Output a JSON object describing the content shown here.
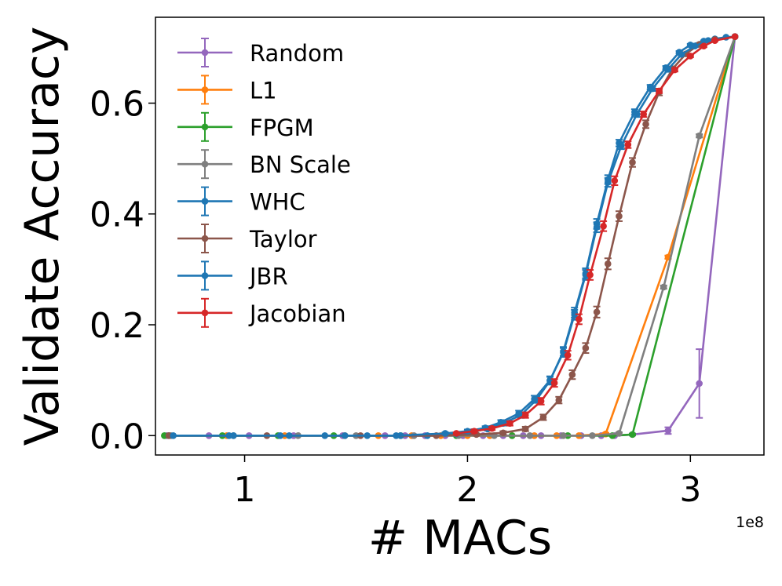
{
  "chart_data": {
    "type": "line",
    "title": "",
    "xlabel": "# MACs",
    "ylabel": "Validate Accuracy",
    "x_scale_label": "1e8",
    "xlim": [
      0.6,
      3.33
    ],
    "ylim": [
      -0.035,
      0.755
    ],
    "x_ticks": [
      1,
      2,
      3
    ],
    "x_tick_labels": [
      "1",
      "2",
      "3"
    ],
    "y_ticks": [
      0.0,
      0.2,
      0.4,
      0.6
    ],
    "y_tick_labels": [
      "0.0",
      "0.2",
      "0.4",
      "0.6"
    ],
    "grid": false,
    "legend_position": "upper-left",
    "series": [
      {
        "name": "Random",
        "color": "#9467bd",
        "x": [
          0.65,
          0.84,
          1.02,
          1.22,
          1.44,
          1.63,
          1.72,
          1.81,
          1.9,
          1.98,
          2.07,
          2.16,
          2.25,
          2.33,
          2.42,
          2.51,
          2.6,
          2.66,
          2.74,
          2.9,
          3.04,
          3.2
        ],
        "y": [
          0.0,
          0.0,
          0.0,
          0.0,
          0.0,
          0.0,
          0.0,
          0.0,
          0.0,
          0.0,
          0.0,
          0.0,
          0.0,
          0.0,
          0.0,
          0.0,
          0.0,
          0.0,
          0.002,
          0.009,
          0.094,
          0.72
        ],
        "err": [
          0,
          0,
          0,
          0,
          0,
          0,
          0,
          0,
          0,
          0,
          0,
          0,
          0,
          0,
          0,
          0,
          0,
          0,
          0.002,
          0.006,
          0.062,
          0
        ]
      },
      {
        "name": "L1",
        "color": "#ff7f0e",
        "x": [
          0.66,
          0.92,
          1.18,
          1.45,
          1.6,
          1.75,
          1.88,
          2.0,
          2.1,
          2.2,
          2.3,
          2.4,
          2.5,
          2.62,
          2.9,
          3.2
        ],
        "y": [
          0.0,
          0.0,
          0.0,
          0.0,
          0.0,
          0.0,
          0.0,
          0.0,
          0.0,
          0.0,
          0.0,
          0.0,
          0.0,
          0.003,
          0.322,
          0.72
        ],
        "err": [
          0,
          0,
          0,
          0,
          0,
          0,
          0,
          0,
          0,
          0,
          0,
          0,
          0,
          0.002,
          0.003,
          0
        ]
      },
      {
        "name": "FPGM",
        "color": "#2ca02c",
        "x": [
          0.64,
          0.9,
          1.15,
          1.4,
          1.7,
          1.95,
          2.2,
          2.45,
          2.65,
          2.74,
          3.2
        ],
        "y": [
          0.0,
          0.0,
          0.0,
          0.0,
          0.0,
          0.0,
          0.0,
          0.0,
          0.0,
          0.002,
          0.72
        ],
        "err": [
          0,
          0,
          0,
          0,
          0,
          0,
          0,
          0,
          0,
          0.001,
          0
        ]
      },
      {
        "name": "BN Scale",
        "color": "#7f7f7f",
        "x": [
          0.67,
          0.95,
          1.24,
          1.5,
          1.76,
          1.96,
          2.12,
          2.28,
          2.43,
          2.56,
          2.68,
          2.88,
          3.04,
          3.2
        ],
        "y": [
          0.0,
          0.0,
          0.0,
          0.0,
          0.0,
          0.0,
          0.0,
          0.0,
          0.0,
          0.0,
          0.004,
          0.268,
          0.541,
          0.72
        ],
        "err": [
          0,
          0,
          0,
          0,
          0,
          0,
          0,
          0,
          0,
          0,
          0.002,
          0.003,
          0.003,
          0
        ]
      },
      {
        "name": "WHC",
        "color": "#1f77b4",
        "x": [
          0.66,
          0.93,
          1.16,
          1.36,
          1.55,
          1.7,
          1.82,
          1.95,
          2.02,
          2.09,
          2.16,
          2.24,
          2.31,
          2.37,
          2.43,
          2.48,
          2.53,
          2.58,
          2.63,
          2.68,
          2.75,
          2.82,
          2.89,
          2.95,
          3.0,
          3.06,
          3.11,
          3.16,
          3.2
        ],
        "y": [
          0.0,
          0.0,
          0.0,
          0.0,
          0.0,
          0.0,
          0.0,
          0.003,
          0.007,
          0.012,
          0.022,
          0.037,
          0.065,
          0.099,
          0.152,
          0.222,
          0.293,
          0.382,
          0.462,
          0.528,
          0.584,
          0.629,
          0.664,
          0.692,
          0.705,
          0.712,
          0.716,
          0.719,
          0.72
        ],
        "err": [
          0,
          0,
          0,
          0,
          0,
          0,
          0,
          0.002,
          0.003,
          0.003,
          0.004,
          0.005,
          0.006,
          0.007,
          0.008,
          0.009,
          0.009,
          0.009,
          0.008,
          0.006,
          0.005,
          0.004,
          0.003,
          0.002,
          0.002,
          0.001,
          0.001,
          0,
          0
        ]
      },
      {
        "name": "Taylor",
        "color": "#8c564b",
        "x": [
          0.66,
          1.1,
          1.52,
          1.86,
          2.04,
          2.16,
          2.26,
          2.34,
          2.41,
          2.47,
          2.53,
          2.58,
          2.63,
          2.68,
          2.74,
          2.8,
          2.86,
          2.92,
          2.98,
          3.04,
          3.11,
          3.2
        ],
        "y": [
          0.0,
          0.0,
          0.0,
          0.0,
          0.002,
          0.005,
          0.012,
          0.033,
          0.064,
          0.11,
          0.158,
          0.223,
          0.31,
          0.396,
          0.493,
          0.562,
          0.62,
          0.662,
          0.689,
          0.706,
          0.715,
          0.72
        ],
        "err": [
          0,
          0,
          0,
          0,
          0.002,
          0.003,
          0.004,
          0.005,
          0.006,
          0.008,
          0.009,
          0.01,
          0.01,
          0.009,
          0.008,
          0.007,
          0.006,
          0.004,
          0.003,
          0.002,
          0.001,
          0
        ]
      },
      {
        "name": "JBR",
        "color": "#1f77b4",
        "x": [
          0.68,
          0.95,
          1.2,
          1.45,
          1.68,
          1.9,
          2.0,
          2.08,
          2.15,
          2.23,
          2.3,
          2.37,
          2.43,
          2.48,
          2.53,
          2.58,
          2.63,
          2.69,
          2.76,
          2.83,
          2.9,
          2.96,
          3.02,
          3.08,
          3.2
        ],
        "y": [
          0.0,
          0.0,
          0.0,
          0.0,
          0.0,
          0.004,
          0.008,
          0.014,
          0.024,
          0.04,
          0.066,
          0.1,
          0.15,
          0.218,
          0.29,
          0.376,
          0.457,
          0.523,
          0.58,
          0.626,
          0.661,
          0.688,
          0.703,
          0.713,
          0.72
        ],
        "err": [
          0,
          0,
          0,
          0,
          0,
          0.002,
          0.003,
          0.003,
          0.004,
          0.005,
          0.006,
          0.007,
          0.008,
          0.009,
          0.009,
          0.009,
          0.008,
          0.006,
          0.005,
          0.004,
          0.003,
          0.002,
          0.002,
          0.001,
          0
        ]
      },
      {
        "name": "Jacobian",
        "color": "#d62728",
        "x": [
          1.95,
          2.03,
          2.11,
          2.19,
          2.26,
          2.33,
          2.39,
          2.45,
          2.5,
          2.55,
          2.61,
          2.66,
          2.72,
          2.79,
          2.86,
          2.93,
          3.0,
          3.06,
          3.11,
          3.2
        ],
        "y": [
          0.004,
          0.008,
          0.013,
          0.022,
          0.037,
          0.062,
          0.095,
          0.145,
          0.21,
          0.29,
          0.378,
          0.46,
          0.525,
          0.58,
          0.622,
          0.66,
          0.685,
          0.703,
          0.713,
          0.72
        ],
        "err": [
          0.002,
          0.003,
          0.003,
          0.004,
          0.005,
          0.006,
          0.007,
          0.008,
          0.009,
          0.009,
          0.009,
          0.008,
          0.006,
          0.005,
          0.004,
          0.003,
          0.002,
          0.002,
          0.001,
          0
        ]
      }
    ]
  }
}
